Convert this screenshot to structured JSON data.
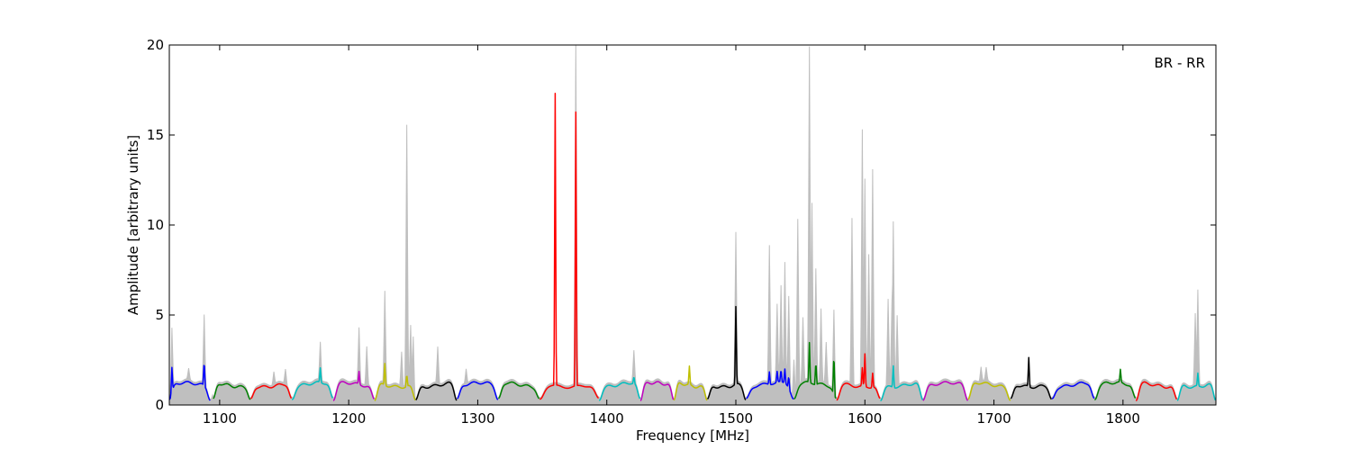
{
  "chart_data": {
    "type": "line",
    "annotation": "BR - RR",
    "xlabel": "Frequency [MHz]",
    "ylabel": "Amplitude [arbitrary units]",
    "xlim": [
      1061,
      1872
    ],
    "ylim": [
      0,
      20
    ],
    "xticks": [
      1100,
      1200,
      1300,
      1400,
      1500,
      1600,
      1700,
      1800
    ],
    "yticks": [
      0,
      5,
      10,
      15,
      20
    ],
    "grid": false,
    "background_series": {
      "color": "#bfbfbf",
      "spikes": [
        {
          "x": 1063,
          "y": 4.6
        },
        {
          "x": 1076,
          "y": 1.7
        },
        {
          "x": 1088,
          "y": 4.9
        },
        {
          "x": 1142,
          "y": 1.8
        },
        {
          "x": 1151,
          "y": 1.9
        },
        {
          "x": 1178,
          "y": 3.2
        },
        {
          "x": 1208,
          "y": 4.1
        },
        {
          "x": 1214,
          "y": 3.2
        },
        {
          "x": 1228,
          "y": 6.2
        },
        {
          "x": 1241,
          "y": 3.0
        },
        {
          "x": 1245,
          "y": 15.5
        },
        {
          "x": 1248,
          "y": 4.4
        },
        {
          "x": 1250,
          "y": 4.2
        },
        {
          "x": 1269,
          "y": 3.1
        },
        {
          "x": 1291,
          "y": 1.9
        },
        {
          "x": 1376,
          "y": 20.0
        },
        {
          "x": 1421,
          "y": 2.8
        },
        {
          "x": 1500,
          "y": 9.4
        },
        {
          "x": 1526,
          "y": 8.7
        },
        {
          "x": 1532,
          "y": 5.3
        },
        {
          "x": 1535,
          "y": 6.3
        },
        {
          "x": 1538,
          "y": 7.7
        },
        {
          "x": 1541,
          "y": 6.1
        },
        {
          "x": 1545,
          "y": 3.2
        },
        {
          "x": 1548,
          "y": 10.5
        },
        {
          "x": 1552,
          "y": 4.6
        },
        {
          "x": 1557,
          "y": 19.6
        },
        {
          "x": 1559,
          "y": 11.0
        },
        {
          "x": 1562,
          "y": 7.4
        },
        {
          "x": 1566,
          "y": 5.1
        },
        {
          "x": 1570,
          "y": 3.4
        },
        {
          "x": 1576,
          "y": 5.7
        },
        {
          "x": 1590,
          "y": 10.3
        },
        {
          "x": 1598,
          "y": 15.2
        },
        {
          "x": 1600,
          "y": 12.5
        },
        {
          "x": 1603,
          "y": 8.4
        },
        {
          "x": 1606,
          "y": 13.1
        },
        {
          "x": 1618,
          "y": 5.8
        },
        {
          "x": 1621,
          "y": 5.8
        },
        {
          "x": 1622,
          "y": 10.2
        },
        {
          "x": 1625,
          "y": 5.0
        },
        {
          "x": 1690,
          "y": 1.9
        },
        {
          "x": 1694,
          "y": 1.8
        },
        {
          "x": 1856,
          "y": 5.0
        },
        {
          "x": 1858,
          "y": 6.3
        }
      ]
    },
    "segments": [
      {
        "color": "#0000ff",
        "x_start": 1061,
        "x_end": 1093,
        "peaks": [
          {
            "x": 1063,
            "y": 2.5
          },
          {
            "x": 1088,
            "y": 2.5
          }
        ]
      },
      {
        "color": "#008000",
        "x_start": 1095,
        "x_end": 1124,
        "peaks": []
      },
      {
        "color": "#ff0000",
        "x_start": 1124,
        "x_end": 1156,
        "peaks": []
      },
      {
        "color": "#00bfbf",
        "x_start": 1156,
        "x_end": 1188,
        "peaks": [
          {
            "x": 1178,
            "y": 1.9
          }
        ]
      },
      {
        "color": "#bf00bf",
        "x_start": 1188,
        "x_end": 1220,
        "peaks": [
          {
            "x": 1208,
            "y": 1.8
          }
        ]
      },
      {
        "color": "#bfbf00",
        "x_start": 1220,
        "x_end": 1252,
        "peaks": [
          {
            "x": 1228,
            "y": 2.3
          },
          {
            "x": 1245,
            "y": 1.8
          }
        ]
      },
      {
        "color": "#000000",
        "x_start": 1252,
        "x_end": 1284,
        "peaks": []
      },
      {
        "color": "#0000ff",
        "x_start": 1284,
        "x_end": 1316,
        "peaks": []
      },
      {
        "color": "#008000",
        "x_start": 1316,
        "x_end": 1348,
        "peaks": []
      },
      {
        "color": "#ff0000",
        "x_start": 1348,
        "x_end": 1394,
        "peaks": [
          {
            "x": 1360,
            "y": 17.3
          },
          {
            "x": 1376,
            "y": 16.3
          }
        ]
      },
      {
        "color": "#00bfbf",
        "x_start": 1394,
        "x_end": 1426,
        "peaks": [
          {
            "x": 1421,
            "y": 1.5
          }
        ]
      },
      {
        "color": "#bf00bf",
        "x_start": 1426,
        "x_end": 1452,
        "peaks": []
      },
      {
        "color": "#bfbf00",
        "x_start": 1452,
        "x_end": 1478,
        "peaks": [
          {
            "x": 1464,
            "y": 2.1
          }
        ]
      },
      {
        "color": "#000000",
        "x_start": 1478,
        "x_end": 1508,
        "peaks": [
          {
            "x": 1500,
            "y": 5.4
          }
        ]
      },
      {
        "color": "#0000ff",
        "x_start": 1508,
        "x_end": 1545,
        "peaks": [
          {
            "x": 1526,
            "y": 1.8
          },
          {
            "x": 1532,
            "y": 1.7
          },
          {
            "x": 1535,
            "y": 1.8
          },
          {
            "x": 1538,
            "y": 1.9
          },
          {
            "x": 1541,
            "y": 1.8
          }
        ]
      },
      {
        "color": "#008000",
        "x_start": 1545,
        "x_end": 1578,
        "peaks": [
          {
            "x": 1557,
            "y": 3.3
          },
          {
            "x": 1562,
            "y": 2.4
          },
          {
            "x": 1576,
            "y": 3.4
          }
        ]
      },
      {
        "color": "#ff0000",
        "x_start": 1578,
        "x_end": 1612,
        "peaks": [
          {
            "x": 1598,
            "y": 2.1
          },
          {
            "x": 1600,
            "y": 2.9
          },
          {
            "x": 1606,
            "y": 1.9
          }
        ]
      },
      {
        "color": "#00bfbf",
        "x_start": 1612,
        "x_end": 1645,
        "peaks": [
          {
            "x": 1622,
            "y": 2.3
          }
        ]
      },
      {
        "color": "#bf00bf",
        "x_start": 1645,
        "x_end": 1680,
        "peaks": []
      },
      {
        "color": "#bfbf00",
        "x_start": 1680,
        "x_end": 1713,
        "peaks": []
      },
      {
        "color": "#000000",
        "x_start": 1713,
        "x_end": 1745,
        "peaks": [
          {
            "x": 1727,
            "y": 2.7
          }
        ]
      },
      {
        "color": "#0000ff",
        "x_start": 1745,
        "x_end": 1778,
        "peaks": []
      },
      {
        "color": "#008000",
        "x_start": 1778,
        "x_end": 1810,
        "peaks": [
          {
            "x": 1798,
            "y": 1.8
          }
        ]
      },
      {
        "color": "#ff0000",
        "x_start": 1810,
        "x_end": 1842,
        "peaks": []
      },
      {
        "color": "#00bfbf",
        "x_start": 1842,
        "x_end": 1872,
        "peaks": [
          {
            "x": 1858,
            "y": 1.8
          }
        ]
      }
    ]
  }
}
